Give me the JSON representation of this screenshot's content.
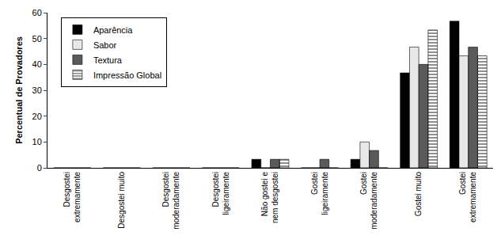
{
  "chart_data": {
    "type": "bar",
    "y_label": "Percentual de Provadores",
    "categories": [
      "Desgostei extremamente",
      "Desgostei muito",
      "Desgostei moderadamente",
      "Desgostei ligeiramente",
      "Não gostei e nem desgostei",
      "Gostei ligeiramente",
      "Gostei moderadamente",
      "Gostei muito",
      "Gostei extremamente"
    ],
    "series": [
      {
        "name": "Aparência",
        "color": "#000000",
        "values": [
          0,
          0,
          0,
          0,
          3.3,
          0,
          3.3,
          36.7,
          56.7
        ]
      },
      {
        "name": "Sabor",
        "color": "#e8e8e8",
        "values": [
          0,
          0,
          0,
          0,
          0,
          0,
          10,
          46.7,
          43.3
        ]
      },
      {
        "name": "Textura",
        "color": "#5a5a5a",
        "values": [
          0,
          0,
          0,
          0,
          3.3,
          3.3,
          6.7,
          40,
          46.7
        ]
      },
      {
        "name": "Impressão Global",
        "color": "#d0d0d0",
        "marker": "hatched",
        "values": [
          0,
          0,
          0,
          0,
          3.3,
          0,
          0,
          53.3,
          43.3
        ]
      }
    ],
    "ylim": [
      0,
      60
    ],
    "yticks": [
      0,
      10,
      20,
      30,
      40,
      50,
      60
    ],
    "grid": false,
    "legend": "top-left"
  }
}
